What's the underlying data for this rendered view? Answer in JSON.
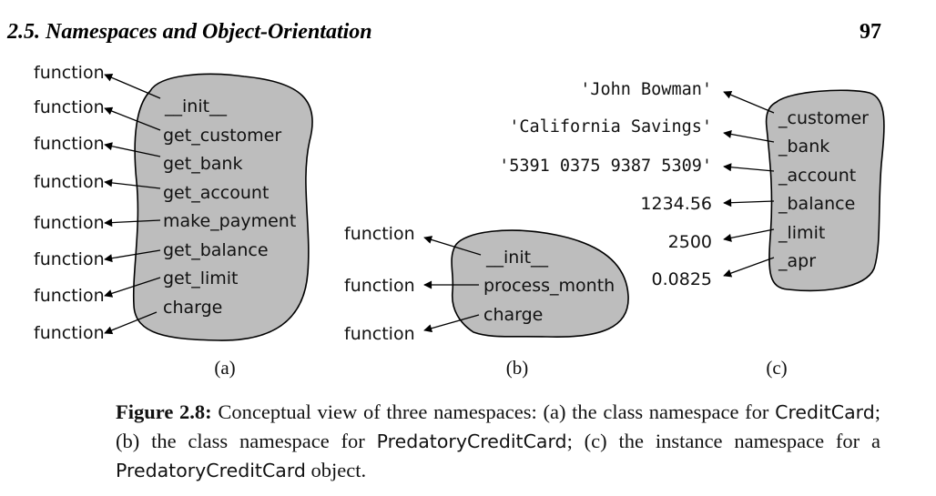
{
  "header": {
    "section_title": "2.5. Namespaces and Object-Orientation",
    "page_number": "97"
  },
  "figure": {
    "panel_a": {
      "members": [
        "__init__",
        "get_customer",
        "get_bank",
        "get_account",
        "make_payment",
        "get_balance",
        "get_limit",
        "charge"
      ],
      "targets": [
        "function",
        "function",
        "function",
        "function",
        "function",
        "function",
        "function",
        "function"
      ],
      "label": "(a)"
    },
    "panel_b": {
      "members": [
        "__init__",
        "process_month",
        "charge"
      ],
      "targets": [
        "function",
        "function",
        "function"
      ],
      "label": "(b)"
    },
    "panel_c": {
      "members": [
        "_customer",
        "_bank",
        "_account",
        "_balance",
        "_limit",
        "_apr"
      ],
      "values": [
        "'John Bowman'",
        "'California Savings'",
        "'5391 0375 9387 5309'",
        "1234.56",
        "2500",
        "0.0825"
      ],
      "label": "(c)"
    }
  },
  "caption": {
    "label": "Figure 2.8:",
    "text_1": " Conceptual view of three namespaces: (a) the class namespace for ",
    "class_1": "CreditCard",
    "text_2": "; (b) the class namespace for ",
    "class_2": "PredatoryCreditCard",
    "text_3": "; (c) the instance namespace for a ",
    "class_3": "PredatoryCreditCard",
    "text_4": " object."
  }
}
